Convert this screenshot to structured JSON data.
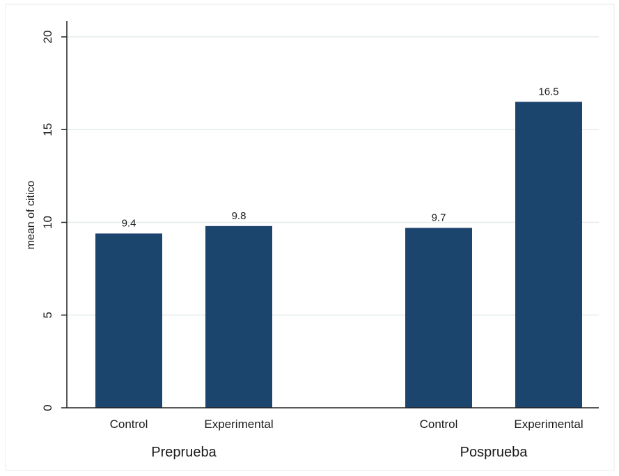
{
  "chart_data": {
    "type": "bar",
    "ylabel": "mean of citico",
    "ylim": [
      0,
      20
    ],
    "yticks": [
      0,
      5,
      10,
      15,
      20
    ],
    "grid": true,
    "groups": [
      {
        "name": "Preprueba",
        "categories": [
          "Control",
          "Experimental"
        ],
        "values": [
          9.4,
          9.8
        ],
        "labels": [
          "9.4",
          "9.8"
        ]
      },
      {
        "name": "Posprueba",
        "categories": [
          "Control",
          "Experimental"
        ],
        "values": [
          9.7,
          16.5
        ],
        "labels": [
          "9.7",
          "16.5"
        ]
      }
    ],
    "colors": {
      "bar": "#1c456e",
      "grid": "#e4ecec",
      "axis": "#222222",
      "text": "#1a1a1a",
      "frame": "#e8eeee"
    }
  }
}
